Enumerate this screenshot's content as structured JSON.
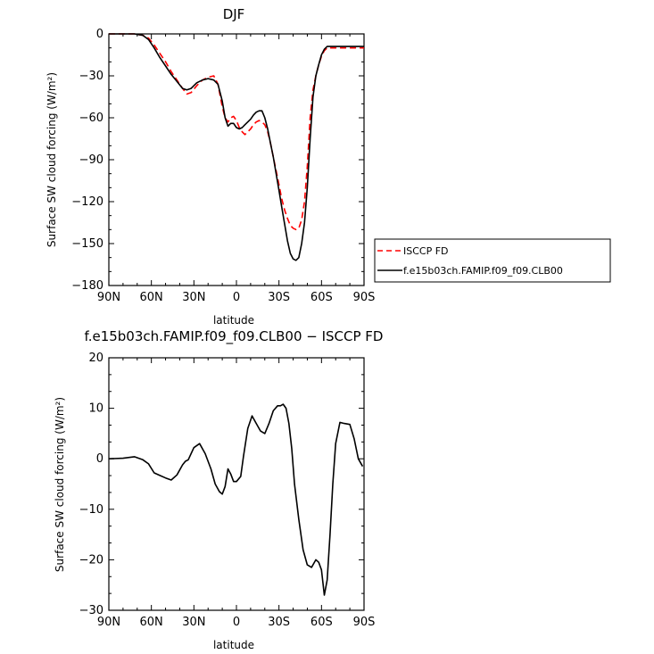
{
  "chart_data": [
    {
      "type": "line",
      "title": "DJF",
      "xlabel": "latitude",
      "ylabel": "Surface SW cloud forcing (W/m²)",
      "xlim": [
        90,
        -90
      ],
      "ylim": [
        -180,
        0
      ],
      "x_ticks": [
        90,
        60,
        30,
        0,
        -30,
        -60,
        -90
      ],
      "x_tick_labels": [
        "90N",
        "60N",
        "30N",
        "0",
        "30S",
        "60S",
        "90S"
      ],
      "y_ticks": [
        0,
        -30,
        -60,
        -90,
        -120,
        -150,
        -180
      ],
      "y_tick_labels": [
        "0",
        "−30",
        "−60",
        "−90",
        "−120",
        "−150",
        "−180"
      ],
      "legend_position": "right, outside plot",
      "series": [
        {
          "name": "ISCCP FD",
          "color": "#ff0000",
          "dash": "dashed",
          "x": [
            90,
            80,
            72,
            66,
            62,
            58,
            54,
            50,
            46,
            42,
            38,
            35,
            32,
            28,
            24,
            20,
            16,
            13,
            10,
            8,
            6,
            4,
            2,
            0,
            -2,
            -4,
            -6,
            -8,
            -10,
            -12,
            -14,
            -16,
            -18,
            -20,
            -22,
            -24,
            -26,
            -28,
            -30,
            -32,
            -34,
            -36,
            -38,
            -40,
            -42,
            -44,
            -46,
            -48,
            -50,
            -52,
            -54,
            -56,
            -58,
            -60,
            -62,
            -64,
            -66,
            -68,
            -70,
            -74,
            -78,
            -82,
            -86,
            -90
          ],
          "y": [
            0,
            0,
            0,
            -1,
            -3,
            -8,
            -14,
            -20,
            -27,
            -33,
            -39,
            -43,
            -42,
            -37,
            -33,
            -31,
            -30,
            -36,
            -52,
            -60,
            -63,
            -60,
            -59,
            -62,
            -67,
            -70,
            -72,
            -70,
            -68,
            -65,
            -63,
            -62,
            -63,
            -65,
            -70,
            -78,
            -88,
            -98,
            -108,
            -118,
            -126,
            -132,
            -137,
            -139,
            -140,
            -139,
            -133,
            -120,
            -95,
            -60,
            -40,
            -30,
            -22,
            -16,
            -12,
            -10,
            -10,
            -10,
            -10,
            -10,
            -10,
            -10,
            -10,
            -10
          ]
        },
        {
          "name": "f.e15b03ch.FAMIP.f09_f09.CLB00",
          "color": "#000000",
          "dash": "solid",
          "x": [
            90,
            80,
            72,
            66,
            62,
            58,
            54,
            50,
            46,
            42,
            38,
            35,
            32,
            28,
            24,
            20,
            16,
            13,
            10,
            8,
            6,
            4,
            2,
            0,
            -2,
            -4,
            -6,
            -8,
            -10,
            -12,
            -14,
            -16,
            -18,
            -20,
            -22,
            -24,
            -26,
            -28,
            -30,
            -32,
            -34,
            -36,
            -38,
            -40,
            -42,
            -44,
            -46,
            -48,
            -50,
            -52,
            -54,
            -56,
            -58,
            -60,
            -62,
            -64,
            -66,
            -68,
            -70,
            -74,
            -78,
            -82,
            -86,
            -90
          ],
          "y": [
            0,
            0,
            0,
            -1,
            -4,
            -10,
            -17,
            -23,
            -29,
            -34,
            -39,
            -40,
            -39,
            -35,
            -33,
            -32,
            -33,
            -36,
            -48,
            -60,
            -66,
            -64,
            -64,
            -67,
            -68,
            -67,
            -65,
            -63,
            -61,
            -58,
            -56,
            -55,
            -55,
            -60,
            -68,
            -78,
            -88,
            -100,
            -112,
            -124,
            -136,
            -148,
            -157,
            -161,
            -162,
            -160,
            -150,
            -135,
            -110,
            -75,
            -45,
            -30,
            -22,
            -15,
            -11,
            -9,
            -9,
            -9,
            -9,
            -9,
            -9,
            -9,
            -9,
            -9
          ]
        }
      ]
    },
    {
      "type": "line",
      "title": "f.e15b03ch.FAMIP.f09_f09.CLB00 − ISCCP FD",
      "xlabel": "latitude",
      "ylabel": "Surface SW cloud forcing (W/m²)",
      "xlim": [
        90,
        -90
      ],
      "ylim": [
        -30,
        20
      ],
      "x_ticks": [
        90,
        60,
        30,
        0,
        -30,
        -60,
        -90
      ],
      "x_tick_labels": [
        "90N",
        "60N",
        "30N",
        "0",
        "30S",
        "60S",
        "90S"
      ],
      "y_ticks": [
        20,
        10,
        0,
        -10,
        -20,
        -30
      ],
      "y_tick_labels": [
        "20",
        "10",
        "0",
        "−10",
        "−20",
        "−30"
      ],
      "series": [
        {
          "color": "#000000",
          "dash": "solid",
          "x": [
            90,
            80,
            72,
            66,
            62,
            58,
            54,
            50,
            46,
            42,
            38,
            36,
            34,
            30,
            26,
            22,
            18,
            15,
            12,
            10,
            8,
            6,
            4,
            2,
            0,
            -3,
            -5,
            -8,
            -11,
            -14,
            -17,
            -20,
            -23,
            -26,
            -29,
            -31,
            -33,
            -35,
            -37,
            -39,
            -41,
            -44,
            -47,
            -50,
            -53,
            -56,
            -58,
            -60,
            -62,
            -64,
            -66,
            -68,
            -70,
            -73,
            -76,
            -80,
            -83,
            -86,
            -89
          ],
          "y": [
            0,
            0.1,
            0.4,
            -0.2,
            -1,
            -2.8,
            -3.3,
            -3.8,
            -4.2,
            -3.2,
            -1.2,
            -0.5,
            -0.2,
            2.2,
            3,
            1,
            -2,
            -5,
            -6.5,
            -7,
            -5.5,
            -2,
            -3,
            -4.5,
            -4.5,
            -3.5,
            0.5,
            6,
            8.5,
            7,
            5.5,
            5,
            7,
            9.5,
            10.5,
            10.5,
            10.8,
            10,
            7,
            2,
            -5,
            -12,
            -18,
            -21,
            -21.5,
            -20,
            -20.5,
            -22,
            -27,
            -24,
            -15,
            -5,
            3,
            7.2,
            7,
            6.8,
            4,
            0,
            -1.5
          ]
        }
      ]
    }
  ]
}
